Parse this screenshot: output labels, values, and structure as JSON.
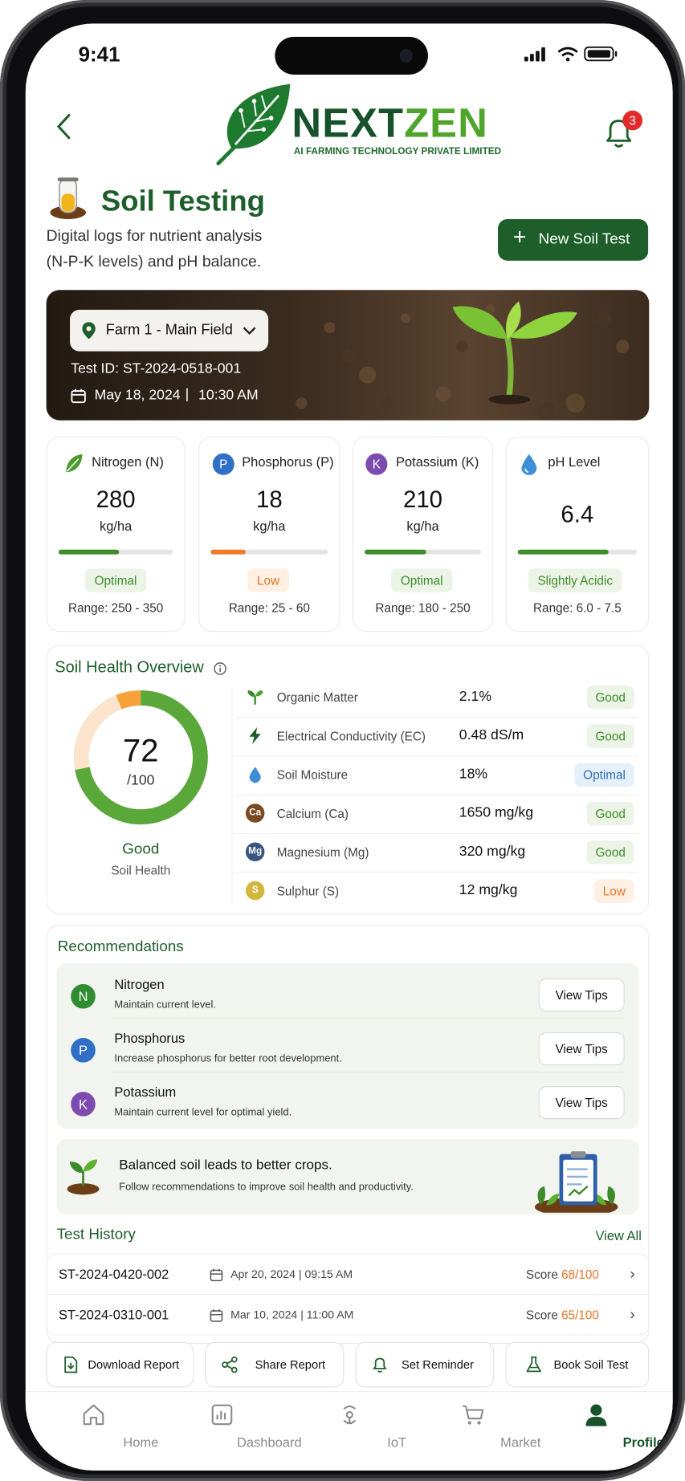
{
  "status_bar": {
    "time": "9:41"
  },
  "header": {
    "back_label": "Back",
    "brand_name_a": "NEXT",
    "brand_name_b": "ZEN",
    "brand_tagline": "AI FARMING TECHNOLOGY PRIVATE LIMITED",
    "notification_count": "3"
  },
  "page": {
    "title": "Soil Testing",
    "subtitle_line1": "Digital logs for nutrient analysis",
    "subtitle_line2": "(N-P-K levels) and pH balance.",
    "new_test_label": "New Soil Test"
  },
  "farm_banner": {
    "farm_select": "Farm 1 - Main Field",
    "test_id": "Test ID: ST-2024-0518-001",
    "date": "May 18, 2024",
    "time": "10:30 AM"
  },
  "nutrients": [
    {
      "name": "Nitrogen (N)",
      "value": "280",
      "unit": "kg/ha",
      "status": "Optimal",
      "range": "Range: 250 - 350",
      "level": 0.53,
      "status_color": "#3f8d2a"
    },
    {
      "name": "Phosphorus (P)",
      "value": "18",
      "unit": "kg/ha",
      "status": "Low",
      "range": "Range: 25 - 60",
      "level": 0.3,
      "status_color": "#f07a2a"
    },
    {
      "name": "Potassium (K)",
      "value": "210",
      "unit": "kg/ha",
      "status": "Optimal",
      "range": "Range: 180 - 250",
      "level": 0.53,
      "status_color": "#3f8d2a"
    },
    {
      "name": "pH Level",
      "value": "6.4",
      "unit": "",
      "status": "Slightly Acidic",
      "range": "Range: 6.0 - 7.5",
      "level": 0.76,
      "status_color": "#3f8d2a"
    }
  ],
  "health_overview": {
    "title": "Soil Health Overview",
    "score": "72",
    "score_max": "/100",
    "score_fraction": 0.72,
    "rating": "Good",
    "rating_sub": "Soil Health",
    "metrics": [
      {
        "name": "Organic Matter",
        "value": "2.1%",
        "status": "Good"
      },
      {
        "name": "Electrical Conductivity (EC)",
        "value": "0.48 dS/m",
        "status": "Good"
      },
      {
        "name": "Soil Moisture",
        "value": "18%",
        "status": "Optimal"
      },
      {
        "name": "Calcium (Ca)",
        "value": "1650 mg/kg",
        "status": "Good",
        "symbol": "Ca"
      },
      {
        "name": "Magnesium (Mg)",
        "value": "320 mg/kg",
        "status": "Good",
        "symbol": "Mg"
      },
      {
        "name": "Sulphur (S)",
        "value": "12 mg/kg",
        "status": "Low",
        "symbol": "S"
      }
    ]
  },
  "recommendations": {
    "title": "Recommendations",
    "items": [
      {
        "letter": "N",
        "title": "Nitrogen",
        "desc": "Maintain current level.",
        "button": "View Tips"
      },
      {
        "letter": "P",
        "title": "Phosphorus",
        "desc": "Increase phosphorus for better root development.",
        "button": "View Tips"
      },
      {
        "letter": "K",
        "title": "Potassium",
        "desc": "Maintain current level for optimal yield.",
        "button": "View Tips"
      }
    ],
    "banner_title": "Balanced soil leads to better crops.",
    "banner_desc": "Follow recommendations to improve soil health and productivity."
  },
  "history": {
    "title": "Test History",
    "view_all": "View All",
    "items": [
      {
        "id": "ST-2024-0420-002",
        "date": "Apr 20, 2024",
        "time": "09:15 AM",
        "score_label": "Score",
        "score": "68/100"
      },
      {
        "id": "ST-2024-0310-001",
        "date": "Mar 10, 2024",
        "time": "11:00 AM",
        "score_label": "Score",
        "score": "65/100"
      }
    ]
  },
  "actions": [
    "Download Report",
    "Share Report",
    "Set Reminder",
    "Book Soil Test"
  ],
  "nav": [
    "Home",
    "Dashboard",
    "IoT",
    "Market",
    "Profile"
  ],
  "colors": {
    "brand_green": "#1e6b2c",
    "accent_orange": "#e8742a",
    "active_nav": "#17522a"
  }
}
